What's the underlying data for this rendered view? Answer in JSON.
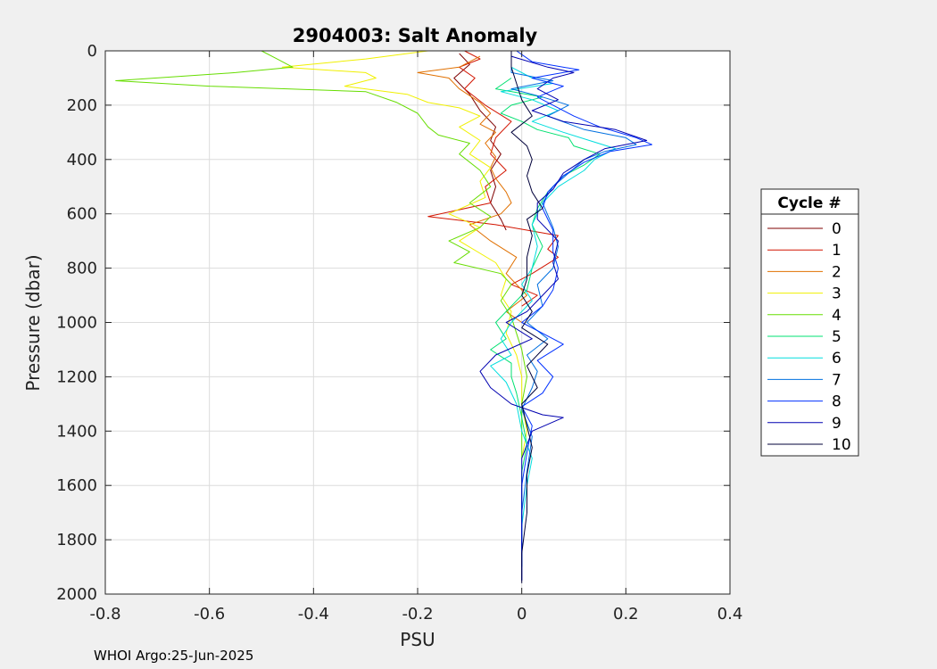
{
  "chart_data": {
    "type": "line",
    "title": "2904003: Salt Anomaly",
    "xlabel": "PSU",
    "ylabel": "Pressure (dbar)",
    "xlim": [
      -0.8,
      0.4
    ],
    "ylim": [
      0,
      2000
    ],
    "y_reversed": true,
    "xticks": [
      "-0.8",
      "-0.6",
      "-0.4",
      "-0.2",
      "0",
      "0.2",
      "0.4"
    ],
    "yticks": [
      "0",
      "200",
      "400",
      "600",
      "800",
      "1000",
      "1200",
      "1400",
      "1600",
      "1800",
      "2000"
    ],
    "grid": true,
    "legend": {
      "title": "Cycle #",
      "placement": "outside-right"
    },
    "footer": "WHOI Argo:25-Jun-2025",
    "series": [
      {
        "name": "0",
        "color": "#7f0000",
        "points": [
          [
            -0.12,
            10
          ],
          [
            -0.1,
            50
          ],
          [
            -0.13,
            100
          ],
          [
            -0.1,
            160
          ],
          [
            -0.08,
            220
          ],
          [
            -0.05,
            280
          ],
          [
            -0.06,
            330
          ],
          [
            -0.04,
            380
          ],
          [
            -0.06,
            440
          ],
          [
            -0.05,
            500
          ],
          [
            -0.06,
            560
          ],
          [
            -0.04,
            620
          ],
          [
            -0.03,
            660
          ]
        ]
      },
      {
        "name": "1",
        "color": "#d21400",
        "points": [
          [
            -0.11,
            0
          ],
          [
            -0.08,
            30
          ],
          [
            -0.12,
            60
          ],
          [
            -0.09,
            100
          ],
          [
            -0.11,
            140
          ],
          [
            -0.07,
            200
          ],
          [
            -0.02,
            260
          ],
          [
            -0.05,
            320
          ],
          [
            -0.06,
            380
          ],
          [
            -0.03,
            440
          ],
          [
            -0.07,
            500
          ],
          [
            -0.06,
            560
          ],
          [
            -0.18,
            610
          ],
          [
            -0.05,
            640
          ],
          [
            0.07,
            680
          ],
          [
            0.05,
            730
          ],
          [
            0.07,
            760
          ],
          [
            0.02,
            820
          ],
          [
            -0.02,
            860
          ],
          [
            0.03,
            900
          ],
          [
            0.0,
            940
          ]
        ]
      },
      {
        "name": "2",
        "color": "#e07000",
        "points": [
          [
            -0.08,
            20
          ],
          [
            -0.12,
            60
          ],
          [
            -0.2,
            80
          ],
          [
            -0.14,
            100
          ],
          [
            -0.12,
            140
          ],
          [
            -0.08,
            190
          ],
          [
            -0.06,
            230
          ],
          [
            -0.08,
            270
          ],
          [
            -0.05,
            300
          ],
          [
            -0.07,
            340
          ],
          [
            -0.05,
            390
          ],
          [
            -0.06,
            430
          ],
          [
            -0.05,
            470
          ],
          [
            -0.03,
            520
          ],
          [
            -0.02,
            560
          ],
          [
            -0.04,
            600
          ],
          [
            -0.1,
            640
          ],
          [
            -0.06,
            700
          ],
          [
            -0.01,
            760
          ],
          [
            -0.03,
            820
          ],
          [
            -0.01,
            860
          ],
          [
            0.01,
            900
          ],
          [
            -0.03,
            960
          ],
          [
            0.0,
            1000
          ]
        ]
      },
      {
        "name": "3",
        "color": "#f0f000",
        "points": [
          [
            -0.18,
            0
          ],
          [
            -0.3,
            30
          ],
          [
            -0.46,
            60
          ],
          [
            -0.3,
            80
          ],
          [
            -0.28,
            100
          ],
          [
            -0.34,
            130
          ],
          [
            -0.22,
            160
          ],
          [
            -0.18,
            190
          ],
          [
            -0.12,
            210
          ],
          [
            -0.08,
            240
          ],
          [
            -0.12,
            280
          ],
          [
            -0.08,
            330
          ],
          [
            -0.1,
            380
          ],
          [
            -0.06,
            430
          ],
          [
            -0.08,
            480
          ],
          [
            -0.07,
            540
          ],
          [
            -0.14,
            600
          ],
          [
            -0.08,
            650
          ],
          [
            -0.12,
            700
          ],
          [
            -0.05,
            780
          ],
          [
            -0.03,
            840
          ],
          [
            -0.04,
            900
          ],
          [
            -0.02,
            960
          ],
          [
            -0.03,
            1040
          ],
          [
            -0.01,
            1120
          ],
          [
            0.0,
            1200
          ],
          [
            0.0,
            1300
          ],
          [
            0.01,
            1400
          ],
          [
            0.0,
            1500
          ]
        ]
      },
      {
        "name": "4",
        "color": "#66dd00",
        "points": [
          [
            -0.5,
            0
          ],
          [
            -0.47,
            30
          ],
          [
            -0.44,
            60
          ],
          [
            -0.55,
            80
          ],
          [
            -0.78,
            110
          ],
          [
            -0.6,
            130
          ],
          [
            -0.3,
            150
          ],
          [
            -0.24,
            190
          ],
          [
            -0.2,
            230
          ],
          [
            -0.18,
            280
          ],
          [
            -0.16,
            310
          ],
          [
            -0.1,
            340
          ],
          [
            -0.12,
            380
          ],
          [
            -0.08,
            440
          ],
          [
            -0.06,
            500
          ],
          [
            -0.1,
            560
          ],
          [
            -0.06,
            610
          ],
          [
            -0.08,
            650
          ],
          [
            -0.14,
            700
          ],
          [
            -0.1,
            740
          ],
          [
            -0.13,
            780
          ],
          [
            -0.04,
            820
          ],
          [
            -0.02,
            860
          ],
          [
            -0.04,
            920
          ],
          [
            -0.02,
            980
          ],
          [
            -0.01,
            1040
          ],
          [
            0.0,
            1100
          ],
          [
            0.01,
            1200
          ],
          [
            0.0,
            1300
          ],
          [
            0.0,
            1400
          ],
          [
            0.0,
            1500
          ]
        ]
      },
      {
        "name": "5",
        "color": "#00e070",
        "points": [
          [
            -0.02,
            100
          ],
          [
            -0.05,
            140
          ],
          [
            0.04,
            170
          ],
          [
            -0.02,
            200
          ],
          [
            -0.04,
            230
          ],
          [
            0.0,
            260
          ],
          [
            0.03,
            290
          ],
          [
            0.09,
            320
          ],
          [
            0.1,
            350
          ],
          [
            0.15,
            380
          ],
          [
            0.12,
            420
          ],
          [
            0.08,
            460
          ],
          [
            0.05,
            520
          ],
          [
            0.03,
            580
          ],
          [
            0.02,
            640
          ],
          [
            0.04,
            720
          ],
          [
            0.02,
            800
          ],
          [
            0.01,
            880
          ],
          [
            -0.02,
            940
          ],
          [
            -0.05,
            1000
          ],
          [
            -0.03,
            1060
          ],
          [
            -0.06,
            1100
          ],
          [
            -0.02,
            1150
          ],
          [
            -0.02,
            1200
          ],
          [
            -0.01,
            1260
          ],
          [
            0.0,
            1350
          ],
          [
            0.01,
            1450
          ],
          [
            0.0,
            1550
          ],
          [
            0.0,
            1700
          ],
          [
            0.0,
            1850
          ]
        ]
      },
      {
        "name": "6",
        "color": "#00dddd",
        "points": [
          [
            -0.02,
            60
          ],
          [
            0.02,
            100
          ],
          [
            0.06,
            120
          ],
          [
            -0.04,
            150
          ],
          [
            0.02,
            180
          ],
          [
            0.07,
            220
          ],
          [
            0.02,
            260
          ],
          [
            0.08,
            300
          ],
          [
            0.13,
            330
          ],
          [
            0.18,
            360
          ],
          [
            0.14,
            400
          ],
          [
            0.12,
            440
          ],
          [
            0.07,
            500
          ],
          [
            0.04,
            560
          ],
          [
            0.02,
            640
          ],
          [
            0.03,
            720
          ],
          [
            0.02,
            800
          ],
          [
            0.0,
            860
          ],
          [
            0.02,
            920
          ],
          [
            -0.02,
            1000
          ],
          [
            -0.04,
            1060
          ],
          [
            -0.02,
            1120
          ],
          [
            -0.06,
            1160
          ],
          [
            -0.03,
            1220
          ],
          [
            -0.01,
            1300
          ],
          [
            0.0,
            1400
          ],
          [
            0.02,
            1500
          ],
          [
            0.01,
            1600
          ],
          [
            0.0,
            1750
          ],
          [
            0.0,
            1900
          ]
        ]
      },
      {
        "name": "7",
        "color": "#0070e0",
        "points": [
          [
            -0.02,
            0
          ],
          [
            -0.02,
            40
          ],
          [
            -0.02,
            80
          ],
          [
            0.06,
            110
          ],
          [
            -0.02,
            140
          ],
          [
            0.04,
            170
          ],
          [
            0.09,
            200
          ],
          [
            0.05,
            240
          ],
          [
            0.12,
            290
          ],
          [
            0.2,
            320
          ],
          [
            0.22,
            345
          ],
          [
            0.16,
            370
          ],
          [
            0.12,
            400
          ],
          [
            0.09,
            450
          ],
          [
            0.06,
            500
          ],
          [
            0.04,
            560
          ],
          [
            0.06,
            650
          ],
          [
            0.07,
            720
          ],
          [
            0.06,
            800
          ],
          [
            0.03,
            860
          ],
          [
            0.04,
            940
          ],
          [
            0.01,
            1000
          ],
          [
            0.05,
            1060
          ],
          [
            0.01,
            1120
          ],
          [
            0.03,
            1180
          ],
          [
            0.02,
            1240
          ],
          [
            0.0,
            1320
          ],
          [
            0.02,
            1420
          ],
          [
            0.01,
            1550
          ],
          [
            0.0,
            1700
          ],
          [
            0.0,
            1900
          ]
        ]
      },
      {
        "name": "8",
        "color": "#0030ff",
        "points": [
          [
            -0.01,
            0
          ],
          [
            0.02,
            40
          ],
          [
            0.11,
            70
          ],
          [
            0.02,
            100
          ],
          [
            0.08,
            130
          ],
          [
            0.03,
            170
          ],
          [
            0.06,
            200
          ],
          [
            0.1,
            240
          ],
          [
            0.15,
            280
          ],
          [
            0.22,
            320
          ],
          [
            0.25,
            345
          ],
          [
            0.17,
            370
          ],
          [
            0.12,
            410
          ],
          [
            0.08,
            460
          ],
          [
            0.05,
            520
          ],
          [
            0.04,
            580
          ],
          [
            0.06,
            660
          ],
          [
            0.06,
            740
          ],
          [
            0.07,
            800
          ],
          [
            0.06,
            880
          ],
          [
            0.04,
            940
          ],
          [
            0.0,
            1000
          ],
          [
            0.08,
            1080
          ],
          [
            0.03,
            1140
          ],
          [
            0.06,
            1200
          ],
          [
            0.04,
            1260
          ],
          [
            0.0,
            1310
          ],
          [
            0.02,
            1380
          ],
          [
            0.01,
            1480
          ],
          [
            0.0,
            1600
          ],
          [
            0.0,
            1800
          ],
          [
            0.0,
            1950
          ]
        ]
      },
      {
        "name": "9",
        "color": "#0000b0",
        "points": [
          [
            -0.02,
            20
          ],
          [
            0.05,
            60
          ],
          [
            0.1,
            80
          ],
          [
            0.06,
            100
          ],
          [
            0.03,
            140
          ],
          [
            0.07,
            180
          ],
          [
            0.02,
            220
          ],
          [
            0.08,
            260
          ],
          [
            0.18,
            290
          ],
          [
            0.24,
            330
          ],
          [
            0.16,
            360
          ],
          [
            0.12,
            400
          ],
          [
            0.08,
            450
          ],
          [
            0.06,
            510
          ],
          [
            0.03,
            560
          ],
          [
            0.03,
            620
          ],
          [
            0.07,
            700
          ],
          [
            0.06,
            780
          ],
          [
            0.07,
            840
          ],
          [
            0.04,
            900
          ],
          [
            0.01,
            960
          ],
          [
            -0.03,
            1000
          ],
          [
            0.02,
            1060
          ],
          [
            -0.05,
            1120
          ],
          [
            -0.08,
            1180
          ],
          [
            -0.06,
            1240
          ],
          [
            -0.02,
            1300
          ],
          [
            0.04,
            1340
          ],
          [
            0.08,
            1350
          ],
          [
            0.02,
            1400
          ],
          [
            0.0,
            1500
          ],
          [
            0.0,
            1700
          ],
          [
            0.0,
            1950
          ]
        ]
      },
      {
        "name": "10",
        "color": "#00003a",
        "points": [
          [
            -0.02,
            0
          ],
          [
            -0.02,
            60
          ],
          [
            -0.01,
            120
          ],
          [
            0.0,
            180
          ],
          [
            0.02,
            240
          ],
          [
            -0.02,
            300
          ],
          [
            0.01,
            350
          ],
          [
            0.02,
            400
          ],
          [
            0.01,
            460
          ],
          [
            0.02,
            520
          ],
          [
            0.04,
            580
          ],
          [
            0.01,
            620
          ],
          [
            0.02,
            680
          ],
          [
            0.01,
            760
          ],
          [
            0.01,
            840
          ],
          [
            0.0,
            900
          ],
          [
            0.02,
            960
          ],
          [
            0.0,
            1020
          ],
          [
            0.05,
            1080
          ],
          [
            0.01,
            1160
          ],
          [
            0.03,
            1240
          ],
          [
            0.0,
            1300
          ],
          [
            0.01,
            1380
          ],
          [
            0.02,
            1460
          ],
          [
            0.01,
            1560
          ],
          [
            0.01,
            1700
          ],
          [
            0.0,
            1850
          ],
          [
            0.0,
            1960
          ]
        ]
      }
    ]
  }
}
